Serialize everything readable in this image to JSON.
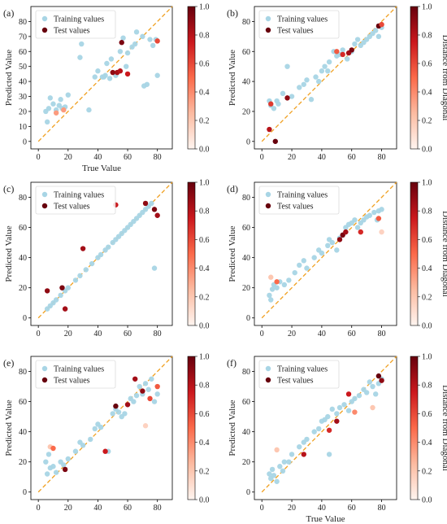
{
  "figure": {
    "colorbar_label": "Distance from Diagonal",
    "colorbar_ticks": [
      "0.0",
      "0.2",
      "0.4",
      "0.6",
      "0.8",
      "1.0"
    ],
    "train_color": "#a8d5e5",
    "diagonal_color": "#f0a020",
    "colormap": [
      "#fff5f0",
      "#fcbba1",
      "#fb6a4a",
      "#cb181d",
      "#67000d"
    ]
  },
  "chart_data": [
    {
      "panel": "(a)",
      "type": "scatter",
      "xlabel": "True Value",
      "ylabel": "Predicted Value",
      "colorbar_label": "",
      "xlim": [
        -5,
        90
      ],
      "ylim": [
        -5,
        90
      ],
      "xticks": [
        0,
        20,
        40,
        60,
        80
      ],
      "yticks": [
        0,
        10,
        20,
        30,
        40,
        50,
        60,
        70,
        80
      ],
      "legend": {
        "position": "top-left",
        "training": "Training values",
        "test": "Test values"
      },
      "training": [
        [
          5,
          20
        ],
        [
          6,
          13
        ],
        [
          7,
          22
        ],
        [
          8,
          29
        ],
        [
          10,
          25
        ],
        [
          12,
          21
        ],
        [
          14,
          24
        ],
        [
          15,
          28
        ],
        [
          16,
          22
        ],
        [
          18,
          23
        ],
        [
          20,
          31
        ],
        [
          28,
          56
        ],
        [
          29,
          65
        ],
        [
          34,
          21
        ],
        [
          38,
          43
        ],
        [
          40,
          47
        ],
        [
          43,
          43
        ],
        [
          44,
          43
        ],
        [
          45,
          44
        ],
        [
          46,
          52
        ],
        [
          48,
          42
        ],
        [
          49,
          55
        ],
        [
          52,
          44
        ],
        [
          55,
          60
        ],
        [
          57,
          69
        ],
        [
          59,
          50
        ],
        [
          60,
          59
        ],
        [
          63,
          63
        ],
        [
          65,
          65
        ],
        [
          66,
          73
        ],
        [
          70,
          70
        ],
        [
          71,
          37
        ],
        [
          73,
          38
        ],
        [
          75,
          68
        ],
        [
          77,
          64
        ],
        [
          79,
          68
        ],
        [
          80,
          44
        ]
      ],
      "test": [
        [
          12,
          19,
          0.35
        ],
        [
          17,
          21,
          0.35
        ],
        [
          50,
          46,
          0.9
        ],
        [
          53,
          46,
          0.85
        ],
        [
          55,
          47,
          0.8
        ],
        [
          56,
          66,
          0.95
        ],
        [
          60,
          45,
          0.75
        ],
        [
          80,
          67,
          0.6
        ]
      ]
    },
    {
      "panel": "(b)",
      "type": "scatter",
      "xlabel": "",
      "ylabel": "Predicted Value",
      "colorbar_label": "Distance from Diagonal",
      "xlim": [
        -5,
        90
      ],
      "ylim": [
        -5,
        90
      ],
      "xticks": [
        0,
        20,
        40,
        60,
        80
      ],
      "yticks": [
        0,
        20,
        40,
        60,
        80
      ],
      "legend": {
        "position": "top-left",
        "training": "Training values",
        "test": "Test values"
      },
      "training": [
        [
          5,
          27
        ],
        [
          6,
          24
        ],
        [
          8,
          22
        ],
        [
          10,
          27
        ],
        [
          11,
          25
        ],
        [
          14,
          32
        ],
        [
          17,
          50
        ],
        [
          20,
          30
        ],
        [
          25,
          36
        ],
        [
          28,
          38
        ],
        [
          30,
          41
        ],
        [
          33,
          28
        ],
        [
          36,
          43
        ],
        [
          38,
          40
        ],
        [
          40,
          47
        ],
        [
          42,
          50
        ],
        [
          44,
          47
        ],
        [
          45,
          53
        ],
        [
          48,
          60
        ],
        [
          50,
          57
        ],
        [
          52,
          58
        ],
        [
          54,
          61
        ],
        [
          57,
          55
        ],
        [
          60,
          60
        ],
        [
          62,
          65
        ],
        [
          64,
          68
        ],
        [
          66,
          64
        ],
        [
          68,
          66
        ],
        [
          70,
          68
        ],
        [
          72,
          70
        ],
        [
          74,
          72
        ],
        [
          76,
          74
        ],
        [
          78,
          70
        ],
        [
          80,
          76
        ]
      ],
      "test": [
        [
          5,
          8,
          0.8
        ],
        [
          6,
          25,
          0.65
        ],
        [
          9,
          0,
          1.0
        ],
        [
          17,
          29,
          0.9
        ],
        [
          50,
          60,
          0.55
        ],
        [
          54,
          58,
          0.7
        ],
        [
          58,
          59,
          0.85
        ],
        [
          60,
          61,
          0.95
        ],
        [
          78,
          77,
          1.0
        ],
        [
          80,
          78,
          0.6
        ]
      ]
    },
    {
      "panel": "(c)",
      "type": "scatter",
      "xlabel": "",
      "ylabel": "Predicted Value",
      "colorbar_label": "",
      "xlim": [
        -5,
        90
      ],
      "ylim": [
        -5,
        90
      ],
      "xticks": [
        0,
        20,
        40,
        60,
        80
      ],
      "yticks": [
        0,
        20,
        40,
        60,
        80
      ],
      "legend": {
        "position": "top-left",
        "training": "Training values",
        "test": "Test values"
      },
      "training": [
        [
          6,
          6
        ],
        [
          8,
          8
        ],
        [
          10,
          10
        ],
        [
          12,
          12
        ],
        [
          15,
          15
        ],
        [
          18,
          18
        ],
        [
          20,
          20
        ],
        [
          25,
          25
        ],
        [
          28,
          28
        ],
        [
          32,
          32
        ],
        [
          36,
          36
        ],
        [
          40,
          40
        ],
        [
          42,
          42
        ],
        [
          45,
          45
        ],
        [
          47,
          47
        ],
        [
          50,
          50
        ],
        [
          52,
          52
        ],
        [
          54,
          54
        ],
        [
          56,
          56
        ],
        [
          58,
          58
        ],
        [
          60,
          60
        ],
        [
          62,
          62
        ],
        [
          64,
          64
        ],
        [
          66,
          66
        ],
        [
          68,
          68
        ],
        [
          70,
          70
        ],
        [
          72,
          72
        ],
        [
          74,
          74
        ],
        [
          76,
          76
        ],
        [
          78,
          33
        ]
      ],
      "test": [
        [
          6,
          18,
          0.9
        ],
        [
          16,
          20,
          0.95
        ],
        [
          18,
          6,
          0.85
        ],
        [
          30,
          46,
          0.85
        ],
        [
          52,
          75,
          0.75
        ],
        [
          72,
          76,
          0.9
        ],
        [
          78,
          72,
          0.95
        ],
        [
          80,
          68,
          0.85
        ]
      ]
    },
    {
      "panel": "(d)",
      "type": "scatter",
      "xlabel": "",
      "ylabel": "Predicted Value",
      "colorbar_label": "Distance from Diagonal",
      "xlim": [
        -5,
        90
      ],
      "ylim": [
        -5,
        90
      ],
      "xticks": [
        0,
        20,
        40,
        60,
        80
      ],
      "yticks": [
        0,
        20,
        40,
        60,
        80
      ],
      "legend": {
        "position": "top-left",
        "training": "Training values",
        "test": "Test values"
      },
      "training": [
        [
          5,
          15
        ],
        [
          6,
          12
        ],
        [
          7,
          19
        ],
        [
          8,
          22
        ],
        [
          10,
          20
        ],
        [
          12,
          24
        ],
        [
          15,
          22
        ],
        [
          18,
          25
        ],
        [
          22,
          30
        ],
        [
          25,
          35
        ],
        [
          28,
          38
        ],
        [
          30,
          33
        ],
        [
          35,
          40
        ],
        [
          38,
          45
        ],
        [
          40,
          43
        ],
        [
          44,
          48
        ],
        [
          45,
          52
        ],
        [
          47,
          50
        ],
        [
          50,
          45
        ],
        [
          52,
          53
        ],
        [
          54,
          55
        ],
        [
          56,
          60
        ],
        [
          58,
          62
        ],
        [
          60,
          63
        ],
        [
          62,
          65
        ],
        [
          64,
          60
        ],
        [
          66,
          63
        ],
        [
          68,
          65
        ],
        [
          70,
          67
        ],
        [
          72,
          68
        ],
        [
          75,
          70
        ],
        [
          77,
          65
        ],
        [
          78,
          71
        ],
        [
          80,
          72
        ]
      ],
      "test": [
        [
          6,
          27,
          0.2
        ],
        [
          10,
          24,
          0.5
        ],
        [
          52,
          52,
          0.9
        ],
        [
          54,
          55,
          0.95
        ],
        [
          56,
          57,
          0.85
        ],
        [
          66,
          57,
          0.7
        ],
        [
          78,
          66,
          0.55
        ],
        [
          80,
          57,
          0.15
        ]
      ]
    },
    {
      "panel": "(e)",
      "type": "scatter",
      "xlabel": "",
      "ylabel": "Predicted Value",
      "colorbar_label": "",
      "xlim": [
        -5,
        90
      ],
      "ylim": [
        -5,
        90
      ],
      "xticks": [
        0,
        20,
        40,
        60,
        80
      ],
      "yticks": [
        0,
        20,
        40,
        60,
        80
      ],
      "legend": {
        "position": "top-left",
        "training": "Training values",
        "test": "Test values"
      },
      "training": [
        [
          5,
          20
        ],
        [
          6,
          12
        ],
        [
          7,
          25
        ],
        [
          8,
          16
        ],
        [
          10,
          17
        ],
        [
          12,
          13
        ],
        [
          15,
          20
        ],
        [
          17,
          18
        ],
        [
          20,
          22
        ],
        [
          25,
          27
        ],
        [
          28,
          33
        ],
        [
          30,
          31
        ],
        [
          35,
          35
        ],
        [
          38,
          42
        ],
        [
          40,
          45
        ],
        [
          42,
          43
        ],
        [
          47,
          27
        ],
        [
          50,
          52
        ],
        [
          52,
          55
        ],
        [
          54,
          53
        ],
        [
          56,
          50
        ],
        [
          58,
          52
        ],
        [
          60,
          58
        ],
        [
          62,
          62
        ],
        [
          64,
          60
        ],
        [
          66,
          64
        ],
        [
          68,
          70
        ],
        [
          70,
          65
        ],
        [
          72,
          72
        ],
        [
          74,
          68
        ],
        [
          76,
          75
        ],
        [
          78,
          60
        ],
        [
          80,
          65
        ]
      ],
      "test": [
        [
          8,
          30,
          0.2
        ],
        [
          10,
          29,
          0.5
        ],
        [
          18,
          15,
          0.95
        ],
        [
          45,
          27,
          0.75
        ],
        [
          52,
          57,
          1.0
        ],
        [
          60,
          58,
          0.85
        ],
        [
          65,
          75,
          0.85
        ],
        [
          70,
          67,
          0.9
        ],
        [
          75,
          62,
          0.6
        ],
        [
          80,
          70,
          0.55
        ],
        [
          72,
          44,
          0.15
        ]
      ]
    },
    {
      "panel": "(f)",
      "type": "scatter",
      "xlabel": "True Value",
      "ylabel": "Predicted Value",
      "colorbar_label": "Distance from Diagonal",
      "xlim": [
        -5,
        90
      ],
      "ylim": [
        -5,
        90
      ],
      "xticks": [
        0,
        20,
        40,
        60,
        80
      ],
      "yticks": [
        0,
        20,
        40,
        60,
        80
      ],
      "legend": {
        "position": "top-left",
        "training": "Training values",
        "test": "Test values"
      },
      "training": [
        [
          5,
          12
        ],
        [
          6,
          9
        ],
        [
          7,
          15
        ],
        [
          8,
          11
        ],
        [
          10,
          7
        ],
        [
          12,
          17
        ],
        [
          14,
          14
        ],
        [
          15,
          20
        ],
        [
          18,
          20
        ],
        [
          20,
          25
        ],
        [
          25,
          30
        ],
        [
          28,
          33
        ],
        [
          30,
          35
        ],
        [
          35,
          40
        ],
        [
          38,
          42
        ],
        [
          40,
          47
        ],
        [
          42,
          48
        ],
        [
          44,
          50
        ],
        [
          45,
          25
        ],
        [
          47,
          55
        ],
        [
          50,
          52
        ],
        [
          52,
          56
        ],
        [
          55,
          58
        ],
        [
          58,
          54
        ],
        [
          60,
          60
        ],
        [
          62,
          62
        ],
        [
          65,
          64
        ],
        [
          68,
          68
        ],
        [
          70,
          66
        ],
        [
          72,
          73
        ],
        [
          74,
          70
        ],
        [
          76,
          65
        ],
        [
          78,
          72
        ],
        [
          80,
          75
        ]
      ],
      "test": [
        [
          10,
          28,
          0.2
        ],
        [
          28,
          25,
          0.8
        ],
        [
          45,
          41,
          0.7
        ],
        [
          50,
          47,
          0.85
        ],
        [
          58,
          65,
          0.75
        ],
        [
          62,
          53,
          0.4
        ],
        [
          74,
          56,
          0.2
        ],
        [
          78,
          77,
          1.0
        ],
        [
          80,
          74,
          0.9
        ]
      ]
    }
  ]
}
